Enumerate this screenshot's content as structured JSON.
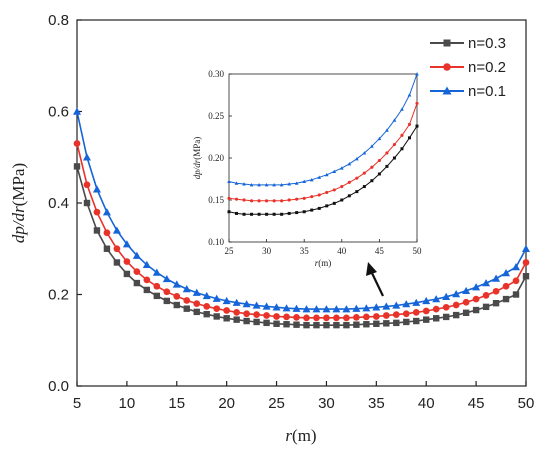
{
  "chart_data": [
    {
      "type": "line",
      "title": "",
      "xlabel_italic": "r",
      "xlabel_unit": "(m)",
      "ylabel_italic": "dp/dr",
      "ylabel_unit": "(MPa)",
      "xlim": [
        5,
        50
      ],
      "ylim": [
        0.0,
        0.8
      ],
      "xticks": [
        "5",
        "10",
        "15",
        "20",
        "25",
        "30",
        "35",
        "40",
        "45",
        "50"
      ],
      "yticks": [
        "0.0",
        "0.2",
        "0.4",
        "0.6",
        "0.8"
      ],
      "legend_position": "top-right",
      "x": [
        5,
        6,
        7,
        8,
        9,
        10,
        11,
        12,
        13,
        14,
        15,
        16,
        17,
        18,
        19,
        20,
        21,
        22,
        23,
        24,
        25,
        26,
        27,
        28,
        29,
        30,
        31,
        32,
        33,
        34,
        35,
        36,
        37,
        38,
        39,
        40,
        41,
        42,
        43,
        44,
        45,
        46,
        47,
        48,
        49,
        50
      ],
      "series": [
        {
          "name": "n=0.3",
          "color": "#4a4a4a",
          "marker": "square",
          "values": [
            0.48,
            0.4,
            0.34,
            0.3,
            0.27,
            0.245,
            0.225,
            0.21,
            0.197,
            0.186,
            0.177,
            0.169,
            0.162,
            0.157,
            0.152,
            0.148,
            0.145,
            0.142,
            0.14,
            0.138,
            0.136,
            0.135,
            0.134,
            0.133,
            0.133,
            0.133,
            0.133,
            0.133,
            0.134,
            0.135,
            0.136,
            0.137,
            0.138,
            0.14,
            0.142,
            0.145,
            0.148,
            0.151,
            0.155,
            0.16,
            0.166,
            0.173,
            0.181,
            0.19,
            0.2,
            0.24
          ]
        },
        {
          "name": "n=0.2",
          "color": "#e8332a",
          "marker": "circle",
          "values": [
            0.53,
            0.44,
            0.38,
            0.335,
            0.3,
            0.272,
            0.25,
            0.232,
            0.218,
            0.206,
            0.196,
            0.187,
            0.18,
            0.174,
            0.169,
            0.165,
            0.161,
            0.158,
            0.156,
            0.154,
            0.152,
            0.151,
            0.15,
            0.149,
            0.149,
            0.149,
            0.149,
            0.149,
            0.15,
            0.151,
            0.152,
            0.154,
            0.156,
            0.158,
            0.161,
            0.164,
            0.168,
            0.172,
            0.177,
            0.183,
            0.19,
            0.198,
            0.207,
            0.218,
            0.23,
            0.27
          ]
        },
        {
          "name": "n=0.1",
          "color": "#1565d8",
          "marker": "triangle",
          "values": [
            0.6,
            0.5,
            0.43,
            0.38,
            0.34,
            0.31,
            0.285,
            0.265,
            0.248,
            0.234,
            0.222,
            0.212,
            0.204,
            0.197,
            0.191,
            0.186,
            0.182,
            0.179,
            0.176,
            0.174,
            0.172,
            0.17,
            0.169,
            0.168,
            0.168,
            0.168,
            0.168,
            0.168,
            0.169,
            0.17,
            0.172,
            0.174,
            0.176,
            0.179,
            0.182,
            0.186,
            0.19,
            0.195,
            0.201,
            0.208,
            0.216,
            0.225,
            0.235,
            0.247,
            0.26,
            0.3
          ]
        }
      ]
    },
    {
      "type": "line",
      "title": "",
      "xlabel_italic": "r",
      "xlabel_unit": "(m)",
      "ylabel_italic": "dp/dr",
      "ylabel_unit": "(MPa)",
      "xlim": [
        25,
        50
      ],
      "ylim": [
        0.1,
        0.3
      ],
      "xticks": [
        "25",
        "30",
        "35",
        "40",
        "45",
        "50"
      ],
      "yticks": [
        "0.10",
        "0.15",
        "0.20",
        "0.25",
        "0.30"
      ],
      "x": [
        25,
        26,
        27,
        28,
        29,
        30,
        31,
        32,
        33,
        34,
        35,
        36,
        37,
        38,
        39,
        40,
        41,
        42,
        43,
        44,
        45,
        46,
        47,
        48,
        49,
        50
      ],
      "series": [
        {
          "name": "n=0.3",
          "color": "#111111",
          "marker": "square",
          "values": [
            0.136,
            0.134,
            0.133,
            0.133,
            0.133,
            0.133,
            0.133,
            0.133,
            0.134,
            0.135,
            0.136,
            0.138,
            0.14,
            0.143,
            0.146,
            0.15,
            0.155,
            0.16,
            0.166,
            0.173,
            0.181,
            0.19,
            0.2,
            0.211,
            0.224,
            0.238
          ]
        },
        {
          "name": "n=0.2",
          "color": "#e8332a",
          "marker": "circle",
          "values": [
            0.152,
            0.151,
            0.15,
            0.149,
            0.149,
            0.149,
            0.149,
            0.149,
            0.15,
            0.151,
            0.152,
            0.154,
            0.156,
            0.159,
            0.162,
            0.166,
            0.171,
            0.176,
            0.182,
            0.189,
            0.197,
            0.206,
            0.216,
            0.227,
            0.24,
            0.265
          ]
        },
        {
          "name": "n=0.1",
          "color": "#1565d8",
          "marker": "triangle",
          "values": [
            0.172,
            0.17,
            0.169,
            0.168,
            0.168,
            0.168,
            0.168,
            0.168,
            0.169,
            0.17,
            0.172,
            0.174,
            0.177,
            0.18,
            0.184,
            0.188,
            0.193,
            0.199,
            0.206,
            0.214,
            0.223,
            0.233,
            0.245,
            0.258,
            0.275,
            0.3
          ]
        }
      ]
    }
  ]
}
